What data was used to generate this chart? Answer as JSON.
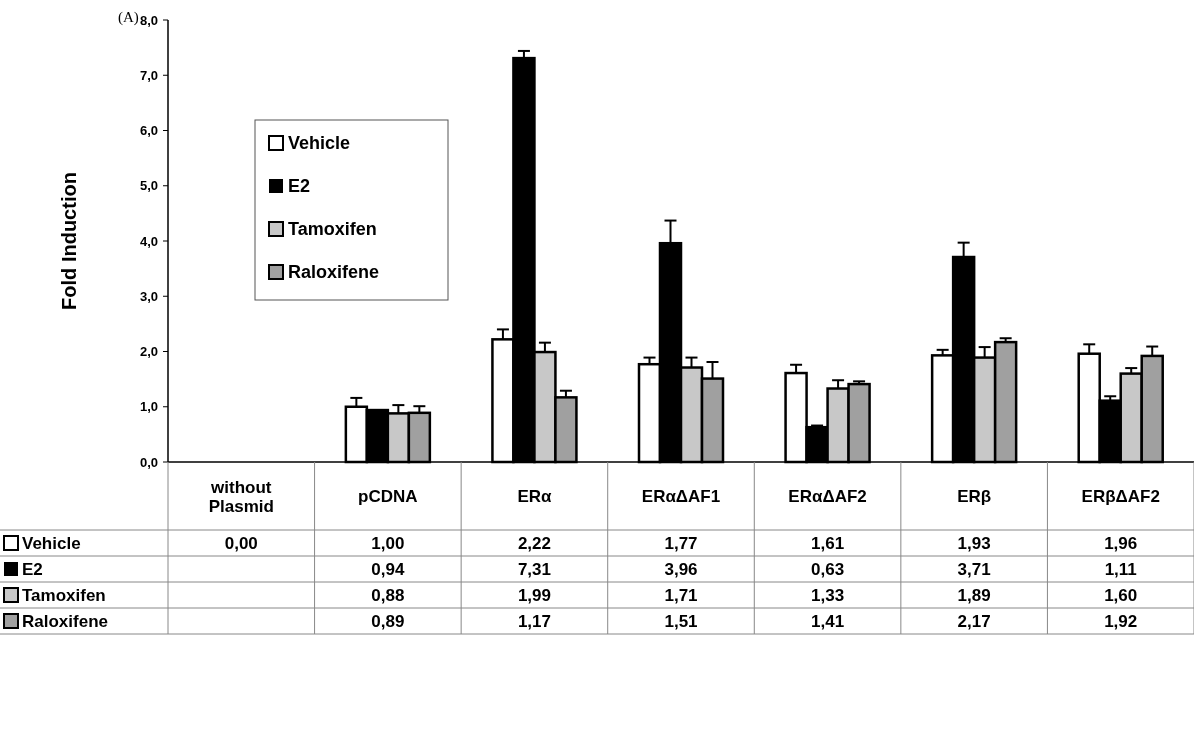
{
  "chart_data": {
    "type": "bar",
    "ylabel": "Fold Induction",
    "annotations": [
      "(A)"
    ],
    "categories": [
      "without Plasmid",
      "pCDNA",
      "ERα",
      "ERαΔAF1",
      "ERαΔAF2",
      "ERβ",
      "ERβΔAF2"
    ],
    "series": [
      {
        "name": "Vehicle",
        "color": "#ffffff",
        "values": [
          0,
          1.0,
          2.22,
          1.77,
          1.61,
          1.93,
          1.96
        ],
        "errors": [
          null,
          0.16,
          0.18,
          0.12,
          0.15,
          0.1,
          0.17
        ],
        "value_labels": [
          "0,00",
          "1,00",
          "2,22",
          "1,77",
          "1,61",
          "1,93",
          "1,96"
        ]
      },
      {
        "name": "E2",
        "color": "#000000",
        "values": [
          null,
          0.94,
          7.31,
          3.96,
          0.63,
          3.71,
          1.11
        ],
        "errors": [
          null,
          null,
          0.13,
          0.41,
          0.03,
          0.26,
          0.08
        ],
        "value_labels": [
          null,
          "0,94",
          "7,31",
          "3,96",
          "0,63",
          "3,71",
          "1,11"
        ]
      },
      {
        "name": "Tamoxifen",
        "color": "#c8c8c8",
        "values": [
          null,
          0.88,
          1.99,
          1.71,
          1.33,
          1.89,
          1.6
        ],
        "errors": [
          null,
          0.15,
          0.17,
          0.18,
          0.15,
          0.19,
          0.1
        ],
        "value_labels": [
          null,
          "0,88",
          "1,99",
          "1,71",
          "1,33",
          "1,89",
          "1,60"
        ]
      },
      {
        "name": "Raloxifene",
        "color": "#a0a0a0",
        "values": [
          null,
          0.89,
          1.17,
          1.51,
          1.41,
          2.17,
          1.92
        ],
        "errors": [
          null,
          0.12,
          0.12,
          0.3,
          0.05,
          0.07,
          0.17
        ],
        "value_labels": [
          null,
          "0,89",
          "1,17",
          "1,51",
          "1,41",
          "2,17",
          "1,92"
        ]
      }
    ],
    "ylim": [
      0,
      8
    ],
    "yticks": [
      {
        "value": 0,
        "label": "0,0"
      },
      {
        "value": 1,
        "label": "1,0"
      },
      {
        "value": 2,
        "label": "2,0"
      },
      {
        "value": 3,
        "label": "3,0"
      },
      {
        "value": 4,
        "label": "4,0"
      },
      {
        "value": 5,
        "label": "5,0"
      },
      {
        "value": 6,
        "label": "6,0"
      },
      {
        "value": 7,
        "label": "7,0"
      },
      {
        "value": 8,
        "label": "8,0"
      }
    ],
    "legend": "top left",
    "grid": false
  }
}
